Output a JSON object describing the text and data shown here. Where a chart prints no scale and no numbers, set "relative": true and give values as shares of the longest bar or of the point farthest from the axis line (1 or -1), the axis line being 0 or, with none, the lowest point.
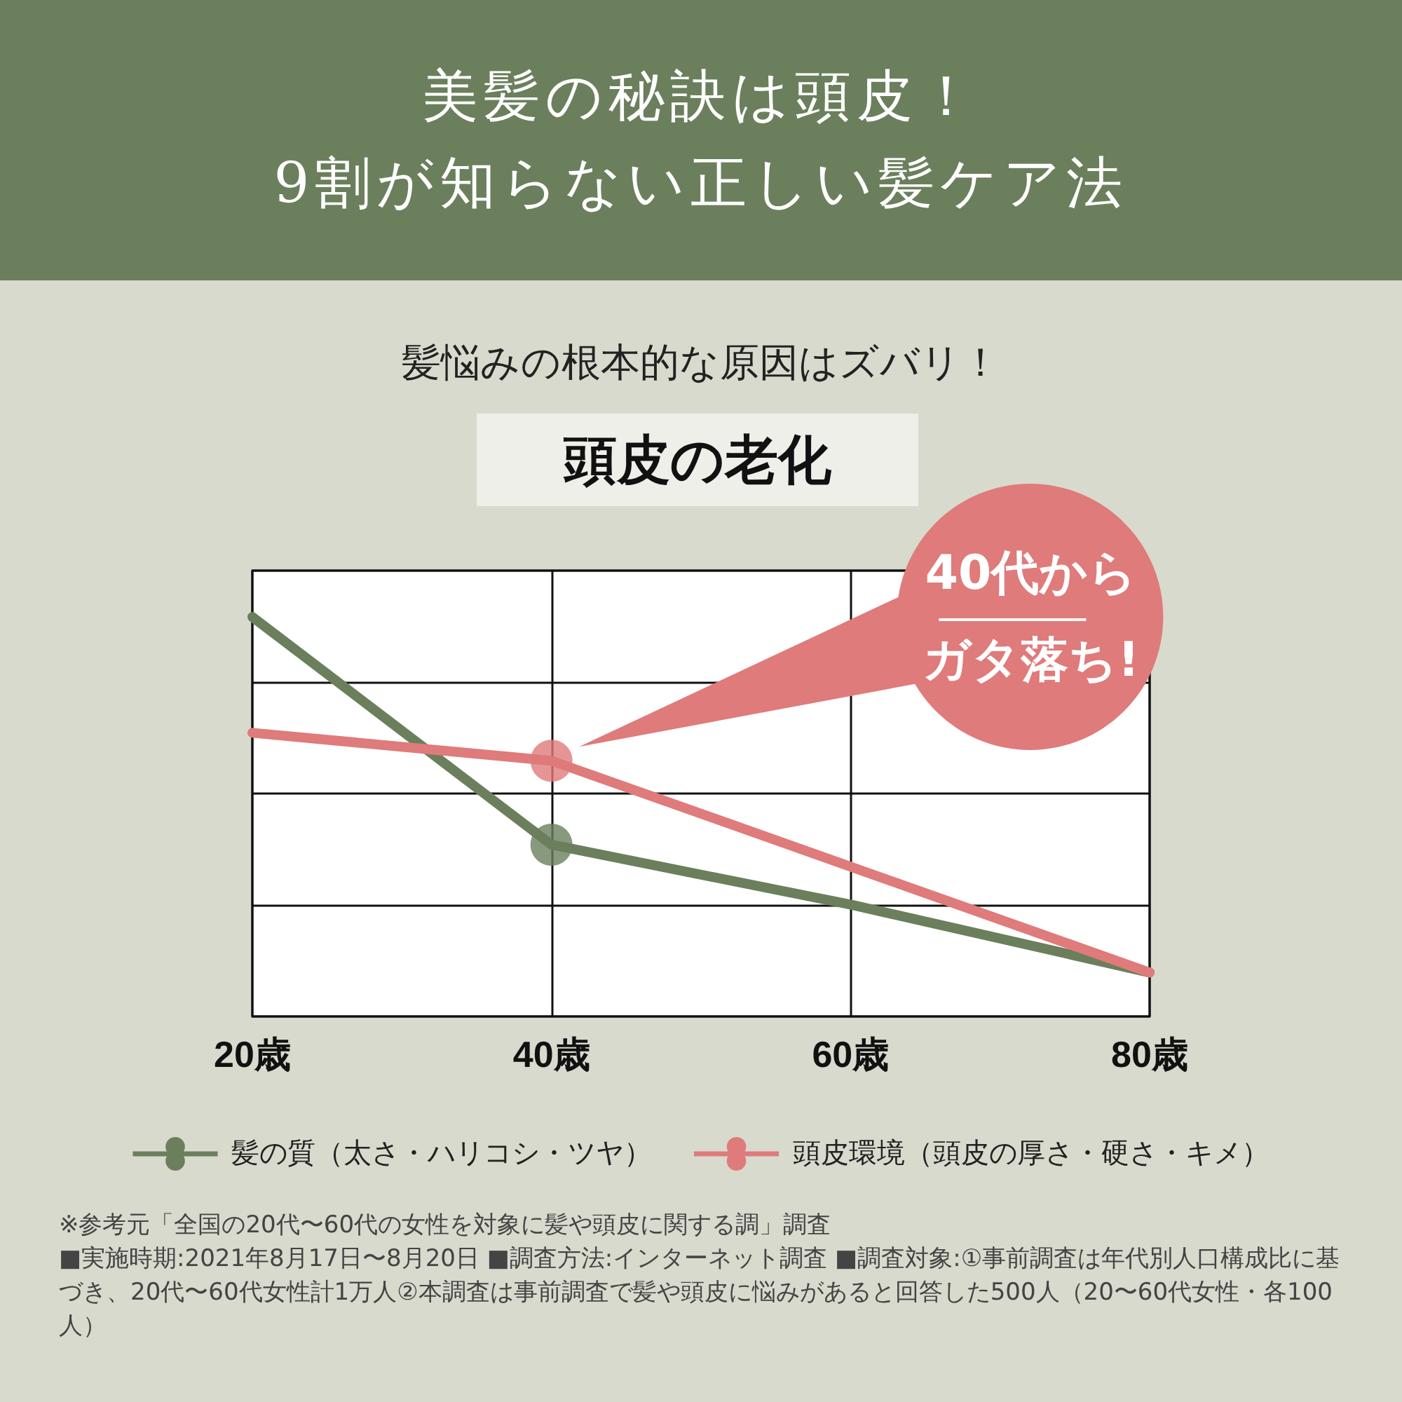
{
  "chart_data": {
    "type": "line",
    "title": "美髪の秘訣は頭皮！\n9割が知らない正しい髪ケア法",
    "subtitle": "髪悩みの根本的な原因はズバリ！",
    "relative": true,
    "xlim": [
      20,
      80
    ],
    "xticks": [
      {
        "value": 20,
        "label": "20歳"
      },
      {
        "value": 40,
        "label": "40歳"
      },
      {
        "value": 60,
        "label": "60歳"
      },
      {
        "value": 80,
        "label": "80歳"
      }
    ],
    "series": [
      {
        "name": "髪の質（太さ・ハリコシ・ツヤ）",
        "color": "#6b7f5c",
        "x": [
          20,
          40,
          60,
          80
        ],
        "values": [
          1,
          0.43,
          0.28,
          0.11
        ]
      },
      {
        "name": "頭皮環境（頭皮の厚さ・硬さ・キメ）",
        "color": "#df7b7b",
        "x": [
          20,
          40,
          80
        ],
        "values": [
          0.71,
          0.64,
          0.11
        ]
      },
      {
        "type": "scatter",
        "color": "#6b7f5c",
        "x": [
          40
        ],
        "values": [
          0.43
        ]
      },
      {
        "type": "scatter",
        "color": "#df7b7b",
        "x": [
          40
        ],
        "values": [
          0.64
        ]
      }
    ],
    "annotations": [
      "頭皮の老化",
      "40代からガタ落ち!",
      "※参考元「全国の20代〜60代の女性を対象に髪や頭皮に関する調」調査",
      "■実施時期:2021年8月17日〜8月20日 ■調査方法:インターネット調査 ■調査対象:①事前調査は年代別人口構成比に基づき、20代〜60代女性計1万人②本調査は事前調査で髪や頭皮に悩みがあると回答した500人（20〜60代女性・各100人）"
    ],
    "grid": true,
    "legend": "bottom",
    "line_style": "solid"
  }
}
